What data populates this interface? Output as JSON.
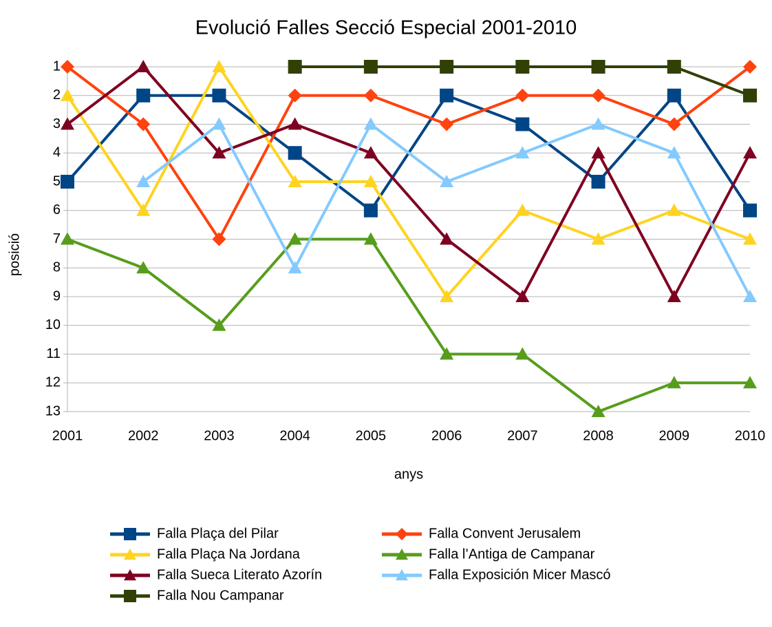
{
  "chart_data": {
    "type": "line",
    "title": "Evolució Falles Secció Especial 2001-2010",
    "x_label": "anys",
    "y_label": "posició",
    "categories": [
      "2001",
      "2002",
      "2003",
      "2004",
      "2005",
      "2006",
      "2007",
      "2008",
      "2009",
      "2010"
    ],
    "ylim": [
      1,
      13
    ],
    "y_inverted": true,
    "yticks": [
      1,
      2,
      3,
      4,
      5,
      6,
      7,
      8,
      9,
      10,
      11,
      12,
      13
    ],
    "grid": true,
    "legend": "bottom",
    "series": [
      {
        "name": "Falla Plaça del Pilar",
        "color": "#004586",
        "marker": "square",
        "values": [
          5,
          2,
          2,
          4,
          6,
          2,
          3,
          5,
          2,
          6
        ]
      },
      {
        "name": "Falla Convent Jerusalem",
        "color": "#ff420e",
        "marker": "diamond",
        "values": [
          1,
          3,
          7,
          2,
          2,
          3,
          2,
          2,
          3,
          1
        ]
      },
      {
        "name": "Falla Plaça Na Jordana",
        "color": "#ffd320",
        "marker": "triangle",
        "values": [
          2,
          6,
          1,
          5,
          5,
          9,
          6,
          7,
          6,
          7
        ]
      },
      {
        "name": "Falla l’Antiga de Campanar",
        "color": "#579d1c",
        "marker": "triangle",
        "values": [
          7,
          8,
          10,
          7,
          7,
          11,
          11,
          13,
          12,
          12
        ]
      },
      {
        "name": "Falla Sueca Literato Azorín",
        "color": "#7e0021",
        "marker": "triangle",
        "values": [
          3,
          1,
          4,
          3,
          4,
          7,
          9,
          4,
          9,
          4
        ]
      },
      {
        "name": "Falla Exposición Micer Mascó",
        "color": "#83caff",
        "marker": "triangle",
        "values": [
          null,
          5,
          3,
          8,
          3,
          5,
          4,
          3,
          4,
          9
        ]
      },
      {
        "name": "Falla Nou Campanar",
        "color": "#314004",
        "marker": "square",
        "values": [
          null,
          null,
          null,
          1,
          1,
          1,
          1,
          1,
          1,
          2
        ]
      }
    ]
  }
}
